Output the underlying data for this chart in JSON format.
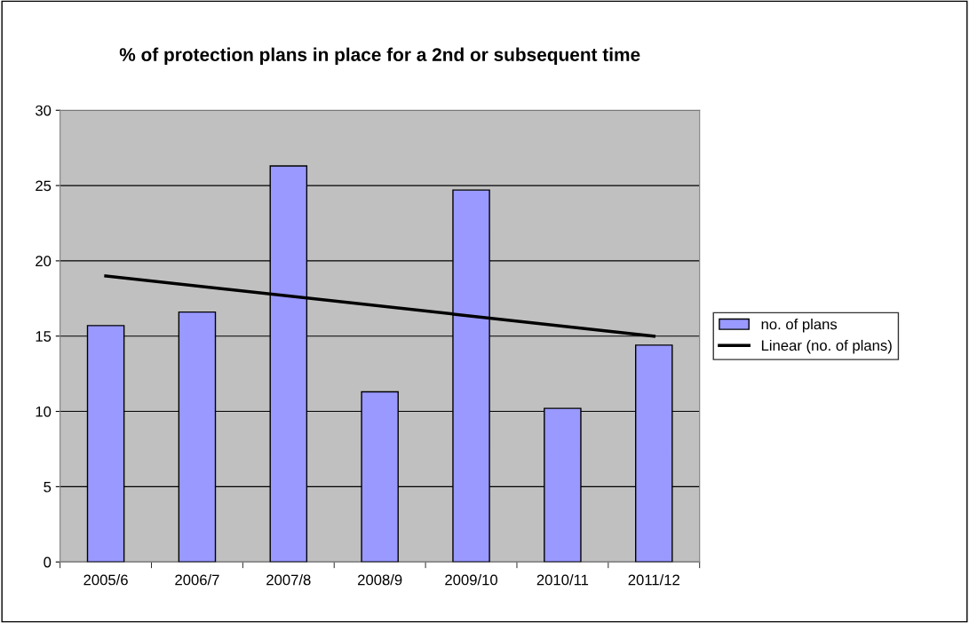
{
  "chart_data": {
    "type": "bar",
    "title": "% of protection plans in place for a 2nd or subsequent time",
    "categories": [
      "2005/6",
      "2006/7",
      "2007/8",
      "2008/9",
      "2009/10",
      "2010/11",
      "2011/12"
    ],
    "series": [
      {
        "name": "no. of plans",
        "color": "#9999ff",
        "values": [
          15.7,
          16.6,
          26.3,
          11.3,
          24.7,
          10.2,
          14.4
        ]
      },
      {
        "name": "Linear (no. of plans)",
        "type": "line",
        "color": "#000000",
        "x": [
          "2005/6",
          "2011/12"
        ],
        "values": [
          19.0,
          15.0
        ]
      }
    ],
    "ylim": [
      0,
      30
    ],
    "yticks": [
      0,
      5,
      10,
      15,
      20,
      25,
      30
    ],
    "grid": "y",
    "legend": "right"
  }
}
